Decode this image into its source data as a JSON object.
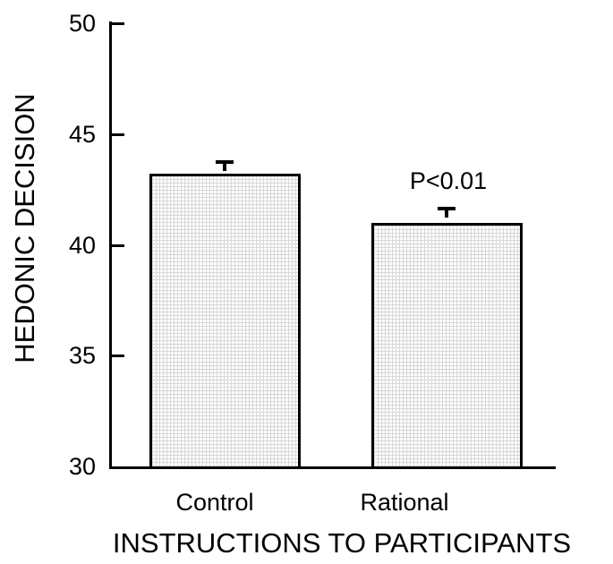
{
  "chart_data": {
    "type": "bar",
    "title": "",
    "xlabel": "INSTRUCTIONS TO PARTICIPANTS",
    "ylabel": "HEDONIC DECISION",
    "categories": [
      "Control",
      "Rational"
    ],
    "values": [
      43.2,
      41.0
    ],
    "error_bars": [
      0.55,
      0.65
    ],
    "annotations": [
      {
        "text": "P<0.01",
        "category_index": 1
      }
    ],
    "ylim": [
      30,
      50
    ],
    "yticks": [
      "30",
      "35",
      "40",
      "45",
      "50"
    ],
    "ytick_values": [
      30,
      35,
      40,
      45,
      50
    ],
    "grid": false,
    "legend": "none",
    "colors": {
      "axis": "#000000",
      "text": "#000000",
      "bar_edge": "#000000",
      "bar_fill_pattern": "#d7d7d7",
      "background": "#ffffff"
    }
  }
}
